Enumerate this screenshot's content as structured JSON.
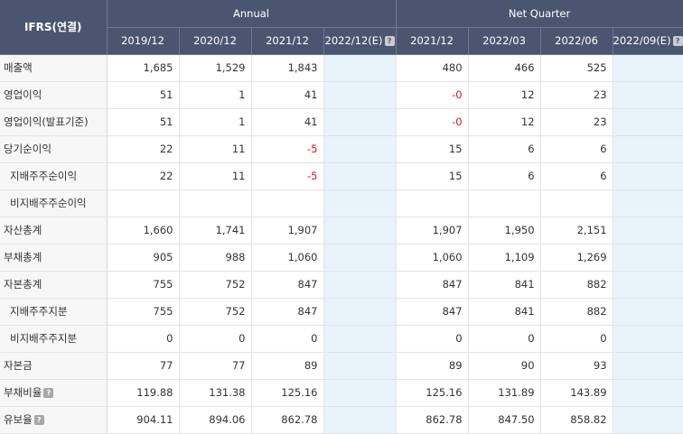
{
  "header": {
    "corner": "IFRS(연결)",
    "annual": "Annual",
    "quarter": "Net Quarter",
    "periods": [
      "2019/12",
      "2020/12",
      "2021/12",
      "2022/12(E)",
      "2021/12",
      "2022/03",
      "2022/06",
      "2022/09(E)"
    ],
    "help_icon": "?"
  },
  "rows": [
    {
      "label": "매출액",
      "sub": false,
      "help": false,
      "values": [
        "1,685",
        "1,529",
        "1,843",
        "",
        "480",
        "466",
        "525",
        ""
      ]
    },
    {
      "label": "영업이익",
      "sub": false,
      "help": false,
      "values": [
        "51",
        "1",
        "41",
        "",
        "-0",
        "12",
        "23",
        ""
      ]
    },
    {
      "label": "영업이익(발표기준)",
      "sub": false,
      "help": false,
      "values": [
        "51",
        "1",
        "41",
        "",
        "-0",
        "12",
        "23",
        ""
      ]
    },
    {
      "label": "당기순이익",
      "sub": false,
      "help": false,
      "values": [
        "22",
        "11",
        "-5",
        "",
        "15",
        "6",
        "6",
        ""
      ]
    },
    {
      "label": "지배주주순이익",
      "sub": true,
      "help": false,
      "values": [
        "22",
        "11",
        "-5",
        "",
        "15",
        "6",
        "6",
        ""
      ]
    },
    {
      "label": "비지배주주순이익",
      "sub": true,
      "help": false,
      "values": [
        "",
        "",
        "",
        "",
        "",
        "",
        "",
        ""
      ]
    },
    {
      "label": "자산총계",
      "sub": false,
      "help": false,
      "values": [
        "1,660",
        "1,741",
        "1,907",
        "",
        "1,907",
        "1,950",
        "2,151",
        ""
      ]
    },
    {
      "label": "부채총계",
      "sub": false,
      "help": false,
      "values": [
        "905",
        "988",
        "1,060",
        "",
        "1,060",
        "1,109",
        "1,269",
        ""
      ]
    },
    {
      "label": "자본총계",
      "sub": false,
      "help": false,
      "values": [
        "755",
        "752",
        "847",
        "",
        "847",
        "841",
        "882",
        ""
      ]
    },
    {
      "label": "지배주주지분",
      "sub": true,
      "help": false,
      "values": [
        "755",
        "752",
        "847",
        "",
        "847",
        "841",
        "882",
        ""
      ]
    },
    {
      "label": "비지배주주지분",
      "sub": true,
      "help": false,
      "values": [
        "0",
        "0",
        "0",
        "",
        "0",
        "0",
        "0",
        ""
      ]
    },
    {
      "label": "자본금",
      "sub": false,
      "help": false,
      "values": [
        "77",
        "77",
        "89",
        "",
        "89",
        "90",
        "93",
        ""
      ]
    },
    {
      "label": "부채비율",
      "sub": false,
      "help": true,
      "values": [
        "119.88",
        "131.38",
        "125.16",
        "",
        "125.16",
        "131.89",
        "143.89",
        ""
      ]
    },
    {
      "label": "유보율",
      "sub": false,
      "help": true,
      "values": [
        "904.11",
        "894.06",
        "862.78",
        "",
        "862.78",
        "847.50",
        "858.82",
        ""
      ]
    }
  ],
  "colors": {
    "header_bg": "#4a5670",
    "estimate_bg": "#e8f4fa",
    "negative": "#d4191a"
  }
}
